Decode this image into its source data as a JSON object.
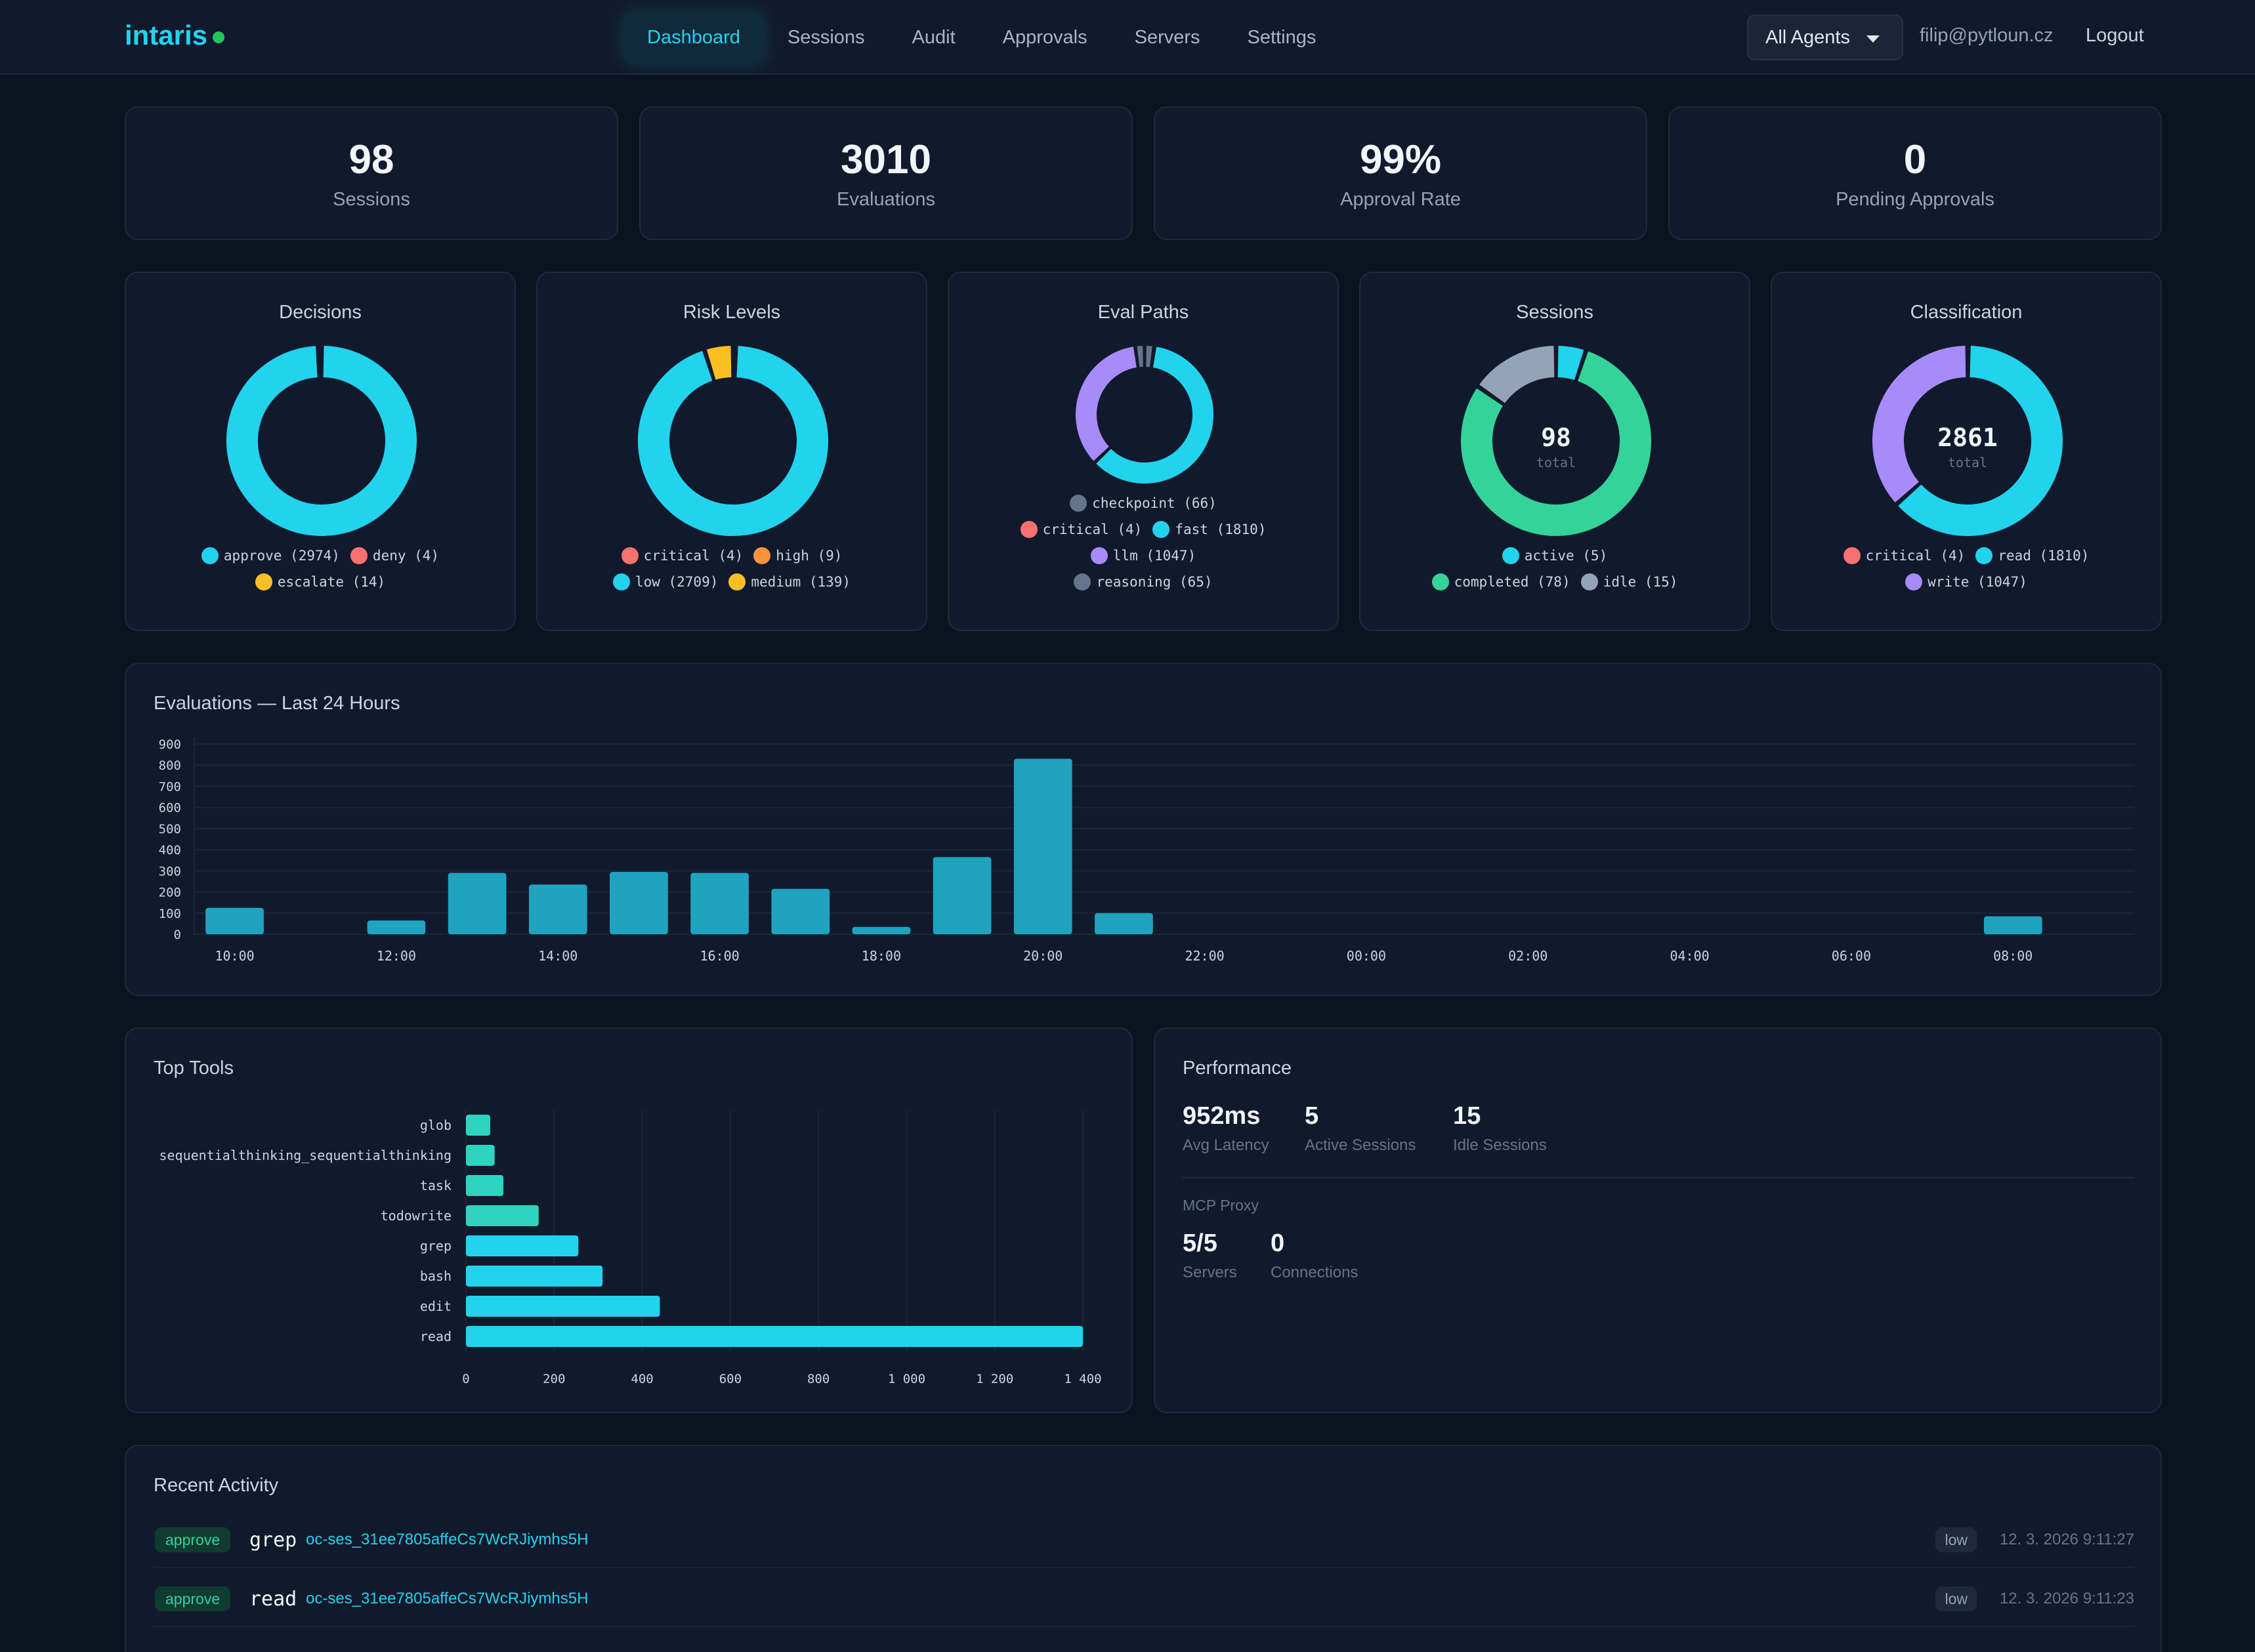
{
  "app": {
    "logo": "intaris"
  },
  "nav": {
    "tabs": [
      {
        "label": "Dashboard",
        "active": true
      },
      {
        "label": "Sessions"
      },
      {
        "label": "Audit"
      },
      {
        "label": "Approvals"
      },
      {
        "label": "Servers"
      },
      {
        "label": "Settings"
      }
    ]
  },
  "header": {
    "agent_select": "All Agents",
    "user_email": "filip@pytloun.cz",
    "logout_label": "Logout"
  },
  "stats": [
    {
      "value": "98",
      "label": "Sessions"
    },
    {
      "value": "3010",
      "label": "Evaluations"
    },
    {
      "value": "99%",
      "label": "Approval Rate"
    },
    {
      "value": "0",
      "label": "Pending Approvals"
    }
  ],
  "colors": {
    "cyan": "#22d3ee",
    "red": "#f87171",
    "amber": "#fbbf24",
    "orange": "#fb923c",
    "purple": "#a78bfa",
    "slate": "#64748b",
    "green": "#34d399",
    "gray": "#94a3b8",
    "teal": "#2dd4bf",
    "accent_bar": "#1fa3bf"
  },
  "chart_data": [
    {
      "type": "pie",
      "title": "Decisions",
      "center_value": "",
      "center_label": "",
      "slices": [
        {
          "label": "approve",
          "value": 2974,
          "color": "#22d3ee"
        },
        {
          "label": "deny",
          "value": 4,
          "color": "#f87171"
        },
        {
          "label": "escalate",
          "value": 14,
          "color": "#fbbf24"
        }
      ],
      "legend_rows": [
        [
          "approve (2974)",
          "deny (4)"
        ],
        [
          "escalate (14)"
        ]
      ]
    },
    {
      "type": "pie",
      "title": "Risk Levels",
      "center_value": "",
      "center_label": "",
      "slices": [
        {
          "label": "critical",
          "value": 4,
          "color": "#f87171"
        },
        {
          "label": "high",
          "value": 9,
          "color": "#fb923c"
        },
        {
          "label": "low",
          "value": 2709,
          "color": "#22d3ee"
        },
        {
          "label": "medium",
          "value": 139,
          "color": "#fbbf24"
        }
      ],
      "legend_rows": [
        [
          "critical (4)",
          "high (9)"
        ],
        [
          "low (2709)",
          "medium (139)"
        ]
      ]
    },
    {
      "type": "pie",
      "title": "Eval Paths",
      "center_value": "",
      "center_label": "",
      "slices": [
        {
          "label": "checkpoint",
          "value": 66,
          "color": "#64748b"
        },
        {
          "label": "critical",
          "value": 4,
          "color": "#f87171"
        },
        {
          "label": "fast",
          "value": 1810,
          "color": "#22d3ee"
        },
        {
          "label": "llm",
          "value": 1047,
          "color": "#a78bfa"
        },
        {
          "label": "reasoning",
          "value": 65,
          "color": "#64748b"
        }
      ],
      "legend_rows": [
        [
          "checkpoint (66)"
        ],
        [
          "critical (4)",
          "fast (1810)"
        ],
        [
          "llm (1047)"
        ],
        [
          "reasoning (65)"
        ]
      ]
    },
    {
      "type": "pie",
      "title": "Sessions",
      "center_value": "98",
      "center_label": "total",
      "slices": [
        {
          "label": "active",
          "value": 5,
          "color": "#22d3ee"
        },
        {
          "label": "completed",
          "value": 78,
          "color": "#34d399"
        },
        {
          "label": "idle",
          "value": 15,
          "color": "#94a3b8"
        }
      ],
      "legend_rows": [
        [
          "active (5)"
        ],
        [
          "completed (78)",
          "idle (15)"
        ]
      ]
    },
    {
      "type": "pie",
      "title": "Classification",
      "center_value": "2861",
      "center_label": "total",
      "slices": [
        {
          "label": "critical",
          "value": 4,
          "color": "#f87171"
        },
        {
          "label": "read",
          "value": 1810,
          "color": "#22d3ee"
        },
        {
          "label": "write",
          "value": 1047,
          "color": "#a78bfa"
        }
      ],
      "legend_rows": [
        [
          "critical (4)",
          "read (1810)"
        ],
        [
          "write (1047)"
        ]
      ]
    },
    {
      "type": "bar",
      "title": "Evaluations — Last 24 Hours",
      "categories": [
        "10:00",
        "11:00",
        "12:00",
        "13:00",
        "14:00",
        "15:00",
        "16:00",
        "17:00",
        "18:00",
        "19:00",
        "20:00",
        "21:00",
        "22:00",
        "23:00",
        "00:00",
        "01:00",
        "02:00",
        "03:00",
        "04:00",
        "05:00",
        "06:00",
        "07:00",
        "08:00",
        "09:00"
      ],
      "tick_labels": [
        "10:00",
        "12:00",
        "14:00",
        "16:00",
        "18:00",
        "20:00",
        "22:00",
        "00:00",
        "02:00",
        "04:00",
        "06:00",
        "08:00"
      ],
      "values": [
        125,
        0,
        65,
        290,
        235,
        295,
        290,
        215,
        35,
        365,
        830,
        100,
        0,
        0,
        0,
        0,
        0,
        0,
        0,
        0,
        0,
        0,
        85,
        0
      ],
      "ylim": [
        0,
        900
      ],
      "yticks": [
        0,
        100,
        200,
        300,
        400,
        500,
        600,
        700,
        800,
        900
      ],
      "grid": true
    },
    {
      "type": "bar",
      "title": "Top Tools",
      "orientation": "horizontal",
      "categories": [
        "glob",
        "sequentialthinking_sequentialthinking",
        "task",
        "todowrite",
        "grep",
        "bash",
        "edit",
        "read"
      ],
      "values": [
        55,
        65,
        85,
        165,
        255,
        310,
        440,
        1400
      ],
      "colors": [
        "#2dd4bf",
        "#2dd4bf",
        "#2dd4bf",
        "#2dd4bf",
        "#22d3ee",
        "#22d3ee",
        "#22d3ee",
        "#22d3ee"
      ],
      "xlim": [
        0,
        1400
      ],
      "xticks": [
        "0",
        "200",
        "400",
        "600",
        "800",
        "1 000",
        "1 200",
        "1 400"
      ],
      "grid": true
    }
  ],
  "performance": {
    "title": "Performance",
    "metrics": [
      {
        "value": "952ms",
        "label": "Avg Latency"
      },
      {
        "value": "5",
        "label": "Active Sessions"
      },
      {
        "value": "15",
        "label": "Idle Sessions"
      }
    ],
    "proxy_title": "MCP Proxy",
    "proxy_metrics": [
      {
        "value": "5/5",
        "label": "Servers"
      },
      {
        "value": "0",
        "label": "Connections"
      }
    ]
  },
  "recent": {
    "title": "Recent Activity",
    "rows": [
      {
        "decision": "approve",
        "tool": "grep",
        "session": "oc-ses_31ee7805affeCs7WcRJiymhs5H",
        "risk": "low",
        "time": "12. 3. 2026 9:11:27"
      },
      {
        "decision": "approve",
        "tool": "read",
        "session": "oc-ses_31ee7805affeCs7WcRJiymhs5H",
        "risk": "low",
        "time": "12. 3. 2026 9:11:23"
      }
    ]
  }
}
